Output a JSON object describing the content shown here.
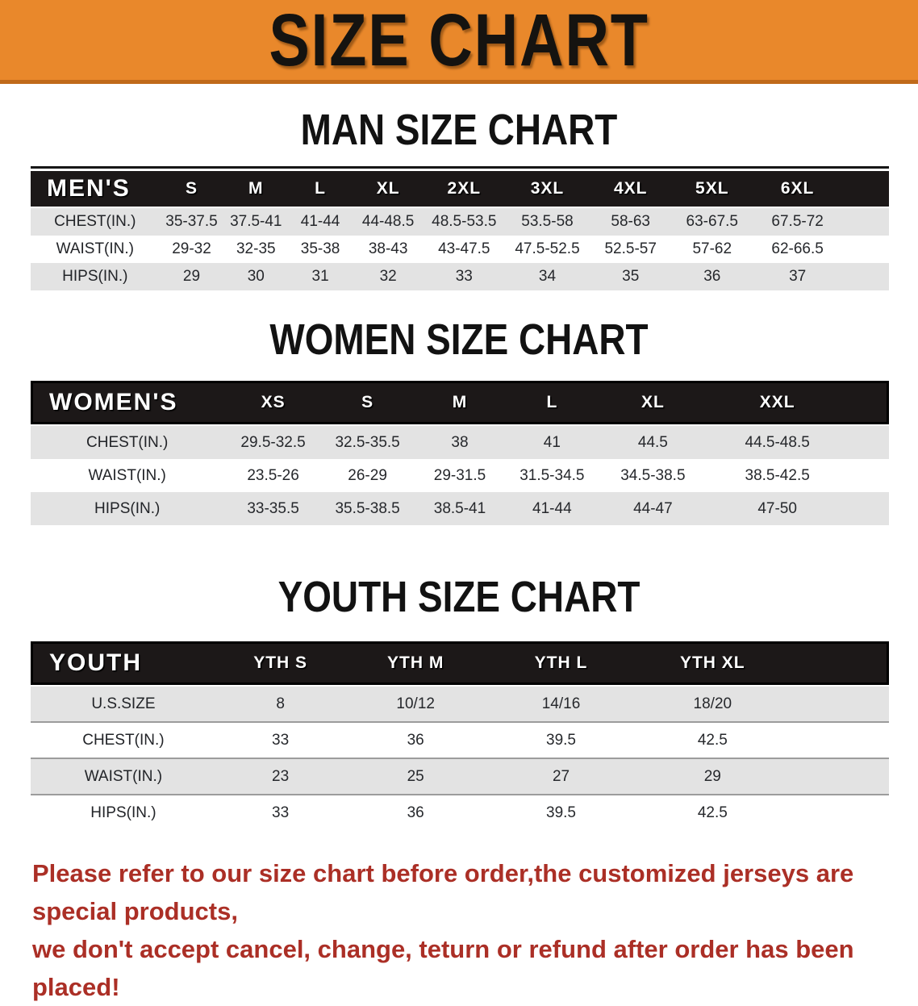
{
  "banner": {
    "title": "SIZE CHART",
    "bg_color": "#e9882b",
    "edge_color": "#c06a1a"
  },
  "men": {
    "heading": "MAN SIZE CHART",
    "header": [
      "MEN'S",
      "S",
      "M",
      "L",
      "XL",
      "2XL",
      "3XL",
      "4XL",
      "5XL",
      "6XL"
    ],
    "rows": [
      {
        "label": "CHEST(IN.)",
        "values": [
          "35-37.5",
          "37.5-41",
          "41-44",
          "44-48.5",
          "48.5-53.5",
          "53.5-58",
          "58-63",
          "63-67.5",
          "67.5-72"
        ]
      },
      {
        "label": "WAIST(IN.)",
        "values": [
          "29-32",
          "32-35",
          "35-38",
          "38-43",
          "43-47.5",
          "47.5-52.5",
          "52.5-57",
          "57-62",
          "62-66.5"
        ]
      },
      {
        "label": "HIPS(IN.)",
        "values": [
          "29",
          "30",
          "31",
          "32",
          "33",
          "34",
          "35",
          "36",
          "37"
        ]
      }
    ]
  },
  "women": {
    "heading": "WOMEN SIZE CHART",
    "header": [
      "WOMEN'S",
      "XS",
      "S",
      "M",
      "L",
      "XL",
      "XXL"
    ],
    "rows": [
      {
        "label": "CHEST(IN.)",
        "values": [
          "29.5-32.5",
          "32.5-35.5",
          "38",
          "41",
          "44.5",
          "44.5-48.5"
        ]
      },
      {
        "label": "WAIST(IN.)",
        "values": [
          "23.5-26",
          "26-29",
          "29-31.5",
          "31.5-34.5",
          "34.5-38.5",
          "38.5-42.5"
        ]
      },
      {
        "label": "HIPS(IN.)",
        "values": [
          "33-35.5",
          "35.5-38.5",
          "38.5-41",
          "41-44",
          "44-47",
          "47-50"
        ]
      }
    ]
  },
  "youth": {
    "heading": "YOUTH SIZE CHART",
    "header": [
      "YOUTH",
      "YTH S",
      "YTH M",
      "YTH L",
      "YTH XL"
    ],
    "rows": [
      {
        "label": "U.S.SIZE",
        "values": [
          "8",
          "10/12",
          "14/16",
          "18/20"
        ]
      },
      {
        "label": "CHEST(IN.)",
        "values": [
          "33",
          "36",
          "39.5",
          "42.5"
        ]
      },
      {
        "label": "WAIST(IN.)",
        "values": [
          "23",
          "25",
          "27",
          "29"
        ]
      },
      {
        "label": "HIPS(IN.)",
        "values": [
          "33",
          "36",
          "39.5",
          "42.5"
        ]
      }
    ]
  },
  "footer": {
    "line1": "Please refer to our size chart before order,the customized jerseys are special products,",
    "line2": "we don't accept cancel, change, teturn or refund after order has been placed!",
    "text_color": "#ab2f26"
  },
  "colors": {
    "header_bar": "#1c1818",
    "zebra_row": "#e3e3e3",
    "youth_row_divider": "#9c9c9c"
  }
}
